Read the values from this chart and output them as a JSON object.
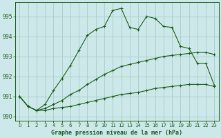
{
  "background_color": "#cce8e8",
  "grid_color": "#aacccc",
  "line_color": "#1a5c1a",
  "xlabel": "Graphe pression niveau de la mer (hPa)",
  "ylim": [
    989.8,
    995.7
  ],
  "xlim": [
    -0.5,
    23.5
  ],
  "yticks": [
    990,
    991,
    992,
    993,
    994,
    995
  ],
  "xticks": [
    0,
    1,
    2,
    3,
    4,
    5,
    6,
    7,
    8,
    9,
    10,
    11,
    12,
    13,
    14,
    15,
    16,
    17,
    18,
    19,
    20,
    21,
    22,
    23
  ],
  "y_a": [
    991.0,
    990.5,
    990.3,
    990.3,
    990.4,
    990.45,
    990.5,
    990.6,
    990.7,
    990.8,
    990.9,
    991.0,
    991.1,
    991.15,
    991.2,
    991.3,
    991.4,
    991.45,
    991.5,
    991.55,
    991.6,
    991.6,
    991.6,
    991.5
  ],
  "y_b": [
    991.0,
    990.5,
    990.3,
    990.4,
    990.6,
    990.8,
    991.1,
    991.3,
    991.6,
    991.85,
    992.1,
    992.3,
    992.5,
    992.6,
    992.7,
    992.8,
    992.9,
    993.0,
    993.05,
    993.1,
    993.15,
    993.2,
    993.2,
    993.1
  ],
  "y_c": [
    991.0,
    990.5,
    990.3,
    990.6,
    991.3,
    991.9,
    992.55,
    993.3,
    994.05,
    994.35,
    994.5,
    995.3,
    995.4,
    994.45,
    994.35,
    995.0,
    994.9,
    994.5,
    994.45,
    993.5,
    993.4,
    992.65,
    992.65,
    991.55
  ]
}
